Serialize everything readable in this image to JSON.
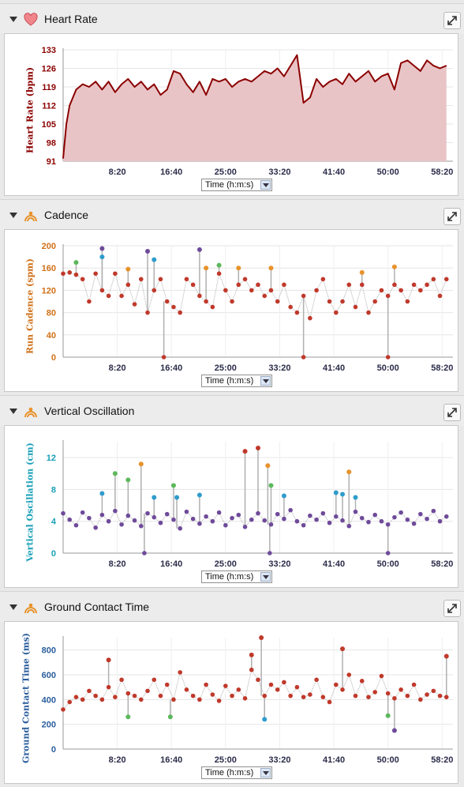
{
  "x_tick_labels": [
    "8:20",
    "16:40",
    "25:00",
    "33:20",
    "41:40",
    "50:00",
    "58:20"
  ],
  "x_select_label": "Time (h:m:s)",
  "panels": [
    {
      "title": "Heart Rate",
      "icon": "heart-icon"
    },
    {
      "title": "Cadence",
      "icon": "running-icon"
    },
    {
      "title": "Vertical Oscillation",
      "icon": "running-icon"
    },
    {
      "title": "Ground Contact Time",
      "icon": "running-icon"
    }
  ],
  "colors": {
    "hr_line": "#8b0000",
    "hr_fill": "#e9c4c6",
    "red": "#c0392b",
    "orange": "#e8922b",
    "green": "#5cb85c",
    "blue": "#2e9ccc",
    "purple": "#6f4a9a",
    "gray_stem": "#b0b0b0"
  },
  "chart_data": [
    {
      "type": "area",
      "ylabel": "Heart Rate (bpm)",
      "ylim": [
        91,
        133
      ],
      "yticks": [
        91,
        98,
        105,
        112,
        119,
        126,
        133
      ],
      "xlim_minutes": [
        0,
        60
      ],
      "x_unit": "minutes",
      "x": [
        0,
        0.5,
        1,
        2,
        3,
        4,
        5,
        6,
        7,
        8,
        9,
        10,
        11,
        12,
        13,
        14,
        15,
        16,
        17,
        18,
        19,
        20,
        21,
        22,
        23,
        24,
        25,
        26,
        27,
        28,
        29,
        30,
        31,
        32,
        33,
        34,
        35,
        36,
        37,
        38,
        39,
        40,
        41,
        42,
        43,
        44,
        45,
        46,
        47,
        48,
        49,
        50,
        51,
        52,
        53,
        54,
        55,
        56,
        57,
        58,
        59
      ],
      "values": [
        92,
        105,
        112,
        118,
        120,
        119,
        121,
        118,
        121,
        117,
        120,
        122,
        119,
        121,
        118,
        120,
        116,
        118,
        125,
        124,
        120,
        117,
        121,
        116,
        122,
        121,
        122,
        119,
        121,
        122,
        121,
        123,
        125,
        124,
        126,
        123,
        127,
        131,
        113,
        115,
        122,
        119,
        121,
        122,
        120,
        124,
        121,
        123,
        125,
        121,
        123,
        124,
        118,
        128,
        129,
        127,
        125,
        129,
        127,
        126,
        127
      ]
    },
    {
      "type": "scatter",
      "ylabel": "Run Cadence (spm)",
      "ylim": [
        0,
        200
      ],
      "yticks": [
        0,
        40,
        80,
        120,
        160,
        200
      ],
      "xlim_minutes": [
        0,
        60
      ],
      "x_unit": "minutes",
      "x": [
        0,
        1,
        2,
        3,
        4,
        5,
        6,
        7,
        8,
        9,
        10,
        11,
        12,
        13,
        14,
        15,
        16,
        17,
        18,
        19,
        20,
        21,
        22,
        23,
        24,
        25,
        26,
        27,
        28,
        29,
        30,
        31,
        32,
        33,
        34,
        35,
        36,
        37,
        38,
        39,
        40,
        41,
        42,
        43,
        44,
        45,
        46,
        47,
        48,
        49,
        50,
        51,
        52,
        53,
        54,
        55,
        56,
        57,
        58,
        59
      ],
      "values": [
        150,
        152,
        148,
        140,
        100,
        150,
        120,
        110,
        150,
        110,
        130,
        95,
        140,
        80,
        120,
        140,
        100,
        90,
        80,
        140,
        130,
        110,
        100,
        90,
        150,
        120,
        100,
        130,
        140,
        120,
        130,
        110,
        120,
        100,
        130,
        90,
        80,
        110,
        70,
        120,
        140,
        100,
        80,
        100,
        130,
        90,
        130,
        80,
        100,
        120,
        110,
        130,
        120,
        100,
        130,
        120,
        130,
        140,
        110,
        140
      ],
      "highlights": [
        {
          "x": 2,
          "y": 170,
          "color": "green"
        },
        {
          "x": 6,
          "y": 195,
          "color": "purple"
        },
        {
          "x": 6,
          "y": 180,
          "color": "blue"
        },
        {
          "x": 10,
          "y": 158,
          "color": "orange"
        },
        {
          "x": 13,
          "y": 190,
          "color": "purple"
        },
        {
          "x": 14,
          "y": 175,
          "color": "blue"
        },
        {
          "x": 21,
          "y": 193,
          "color": "purple"
        },
        {
          "x": 22,
          "y": 160,
          "color": "orange"
        },
        {
          "x": 24,
          "y": 165,
          "color": "green"
        },
        {
          "x": 27,
          "y": 160,
          "color": "orange"
        },
        {
          "x": 32,
          "y": 160,
          "color": "orange"
        },
        {
          "x": 46,
          "y": 152,
          "color": "orange"
        },
        {
          "x": 51,
          "y": 162,
          "color": "orange"
        }
      ],
      "drops": [
        {
          "x": 15.5,
          "y": 0
        },
        {
          "x": 37,
          "y": 0
        },
        {
          "x": 50,
          "y": 0
        }
      ]
    },
    {
      "type": "scatter",
      "ylabel": "Vertical Oscillation (cm)",
      "ylim": [
        0,
        14
      ],
      "yticks": [
        0,
        4,
        8,
        12
      ],
      "xlim_minutes": [
        0,
        60
      ],
      "x_unit": "minutes",
      "x": [
        0,
        1,
        2,
        3,
        4,
        5,
        6,
        7,
        8,
        9,
        10,
        11,
        12,
        13,
        14,
        15,
        16,
        17,
        18,
        19,
        20,
        21,
        22,
        23,
        24,
        25,
        26,
        27,
        28,
        29,
        30,
        31,
        32,
        33,
        34,
        35,
        36,
        37,
        38,
        39,
        40,
        41,
        42,
        43,
        44,
        45,
        46,
        47,
        48,
        49,
        50,
        51,
        52,
        53,
        54,
        55,
        56,
        57,
        58,
        59
      ],
      "values": [
        5,
        4.2,
        3.5,
        5.1,
        4.4,
        3.2,
        4.8,
        4.0,
        5.3,
        3.6,
        4.7,
        4.1,
        3.4,
        5.0,
        4.5,
        3.8,
        4.9,
        4.2,
        3.1,
        5.2,
        4.3,
        3.7,
        4.6,
        4.0,
        5.1,
        3.5,
        4.4,
        4.8,
        3.3,
        4.2,
        5.0,
        4.1,
        3.6,
        4.9,
        4.3,
        5.4,
        4.0,
        3.5,
        4.7,
        4.2,
        5.0,
        3.8,
        4.6,
        4.1,
        3.4,
        5.2,
        4.4,
        3.9,
        4.8,
        4.0,
        3.6,
        4.5,
        5.1,
        4.2,
        3.7,
        4.9,
        4.3,
        5.3,
        4.0,
        4.6
      ],
      "highlights": [
        {
          "x": 6,
          "y": 7.5,
          "color": "blue"
        },
        {
          "x": 8,
          "y": 10,
          "color": "green"
        },
        {
          "x": 10,
          "y": 9.2,
          "color": "green"
        },
        {
          "x": 12,
          "y": 11.2,
          "color": "orange"
        },
        {
          "x": 14,
          "y": 7,
          "color": "blue"
        },
        {
          "x": 17,
          "y": 8.5,
          "color": "green"
        },
        {
          "x": 17.5,
          "y": 7,
          "color": "blue"
        },
        {
          "x": 21,
          "y": 7.3,
          "color": "blue"
        },
        {
          "x": 28,
          "y": 12.8,
          "color": "red"
        },
        {
          "x": 30,
          "y": 13.2,
          "color": "red"
        },
        {
          "x": 31.5,
          "y": 11,
          "color": "orange"
        },
        {
          "x": 32,
          "y": 8.5,
          "color": "green"
        },
        {
          "x": 34,
          "y": 7.2,
          "color": "blue"
        },
        {
          "x": 42,
          "y": 7.6,
          "color": "blue"
        },
        {
          "x": 43,
          "y": 7.4,
          "color": "blue"
        },
        {
          "x": 44,
          "y": 10.2,
          "color": "orange"
        },
        {
          "x": 45,
          "y": 7,
          "color": "blue"
        }
      ],
      "drops": [
        {
          "x": 12.5,
          "y": 0
        },
        {
          "x": 31.8,
          "y": 0
        },
        {
          "x": 50,
          "y": 0
        }
      ]
    },
    {
      "type": "scatter",
      "ylabel": "Ground Contact Time (ms)",
      "ylim": [
        0,
        900
      ],
      "yticks": [
        0,
        200,
        400,
        600,
        800
      ],
      "xlim_minutes": [
        0,
        60
      ],
      "x_unit": "minutes",
      "x": [
        0,
        1,
        2,
        3,
        4,
        5,
        6,
        7,
        8,
        9,
        10,
        11,
        12,
        13,
        14,
        15,
        16,
        17,
        18,
        19,
        20,
        21,
        22,
        23,
        24,
        25,
        26,
        27,
        28,
        29,
        30,
        31,
        32,
        33,
        34,
        35,
        36,
        37,
        38,
        39,
        40,
        41,
        42,
        43,
        44,
        45,
        46,
        47,
        48,
        49,
        50,
        51,
        52,
        53,
        54,
        55,
        56,
        57,
        58,
        59
      ],
      "values": [
        320,
        380,
        420,
        400,
        470,
        430,
        400,
        500,
        420,
        560,
        450,
        430,
        400,
        470,
        560,
        430,
        520,
        400,
        620,
        480,
        430,
        400,
        520,
        440,
        390,
        510,
        430,
        480,
        410,
        640,
        560,
        430,
        520,
        480,
        540,
        430,
        500,
        420,
        440,
        560,
        420,
        380,
        520,
        480,
        600,
        430,
        550,
        420,
        460,
        590,
        450,
        410,
        480,
        430,
        520,
        400,
        440,
        470,
        430,
        420
      ],
      "highlights": [
        {
          "x": 7,
          "y": 720,
          "color": "red"
        },
        {
          "x": 10,
          "y": 260,
          "color": "green"
        },
        {
          "x": 16.5,
          "y": 260,
          "color": "green"
        },
        {
          "x": 29,
          "y": 760,
          "color": "red"
        },
        {
          "x": 30.5,
          "y": 900,
          "color": "red"
        },
        {
          "x": 31,
          "y": 240,
          "color": "blue"
        },
        {
          "x": 43,
          "y": 810,
          "color": "red"
        },
        {
          "x": 50,
          "y": 270,
          "color": "green"
        },
        {
          "x": 51,
          "y": 150,
          "color": "purple"
        },
        {
          "x": 59,
          "y": 750,
          "color": "red"
        }
      ],
      "drops": []
    }
  ]
}
